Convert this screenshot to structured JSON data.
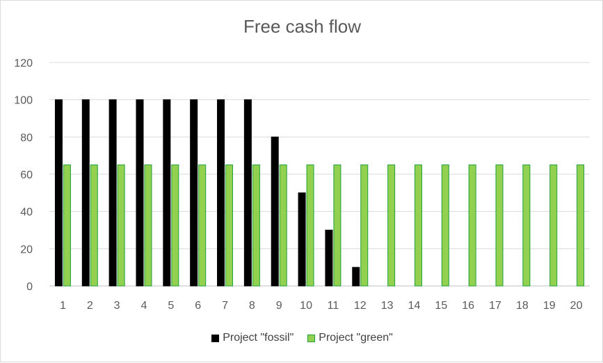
{
  "chart_data": {
    "type": "bar",
    "title": "Free cash flow",
    "xlabel": "",
    "ylabel": "",
    "categories": [
      "1",
      "2",
      "3",
      "4",
      "5",
      "6",
      "7",
      "8",
      "9",
      "10",
      "11",
      "12",
      "13",
      "14",
      "15",
      "16",
      "17",
      "18",
      "19",
      "20"
    ],
    "ylim": [
      0,
      120
    ],
    "yticks": [
      0,
      20,
      40,
      60,
      80,
      100,
      120
    ],
    "grid": true,
    "legend_position": "bottom",
    "series": [
      {
        "name": "Project \"fossil\"",
        "color": "#000000",
        "border": "#000000",
        "values": [
          100,
          100,
          100,
          100,
          100,
          100,
          100,
          100,
          80,
          50,
          30,
          10,
          0,
          0,
          0,
          0,
          0,
          0,
          0,
          0
        ]
      },
      {
        "name": "Project \"green\"",
        "color": "#92d050",
        "border": "#1f9e3a",
        "values": [
          65,
          65,
          65,
          65,
          65,
          65,
          65,
          65,
          65,
          65,
          65,
          65,
          65,
          65,
          65,
          65,
          65,
          65,
          65,
          65
        ]
      }
    ]
  }
}
